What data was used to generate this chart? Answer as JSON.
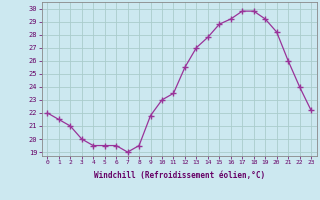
{
  "x": [
    0,
    1,
    2,
    3,
    4,
    5,
    6,
    7,
    8,
    9,
    10,
    11,
    12,
    13,
    14,
    15,
    16,
    17,
    18,
    19,
    20,
    21,
    22,
    23
  ],
  "y": [
    22,
    21.5,
    21,
    20,
    19.5,
    19.5,
    19.5,
    19,
    19.5,
    21.8,
    23,
    23.5,
    25.5,
    27,
    27.8,
    28.8,
    29.2,
    29.8,
    29.8,
    29.2,
    28.2,
    26,
    24,
    22.2
  ],
  "line_color": "#993399",
  "marker": "D",
  "marker_size": 2.2,
  "bg_color": "#cce8f0",
  "grid_color": "#aacccc",
  "xlabel": "Windchill (Refroidissement éolien,°C)",
  "ylabel_ticks": [
    19,
    20,
    21,
    22,
    23,
    24,
    25,
    26,
    27,
    28,
    29,
    30
  ],
  "xlim": [
    -0.5,
    23.5
  ],
  "ylim": [
    18.7,
    30.5
  ],
  "xtick_labels": [
    "0",
    "1",
    "2",
    "3",
    "4",
    "5",
    "6",
    "7",
    "8",
    "9",
    "10",
    "11",
    "12",
    "13",
    "14",
    "15",
    "16",
    "17",
    "18",
    "19",
    "20",
    "21",
    "22",
    "23"
  ]
}
